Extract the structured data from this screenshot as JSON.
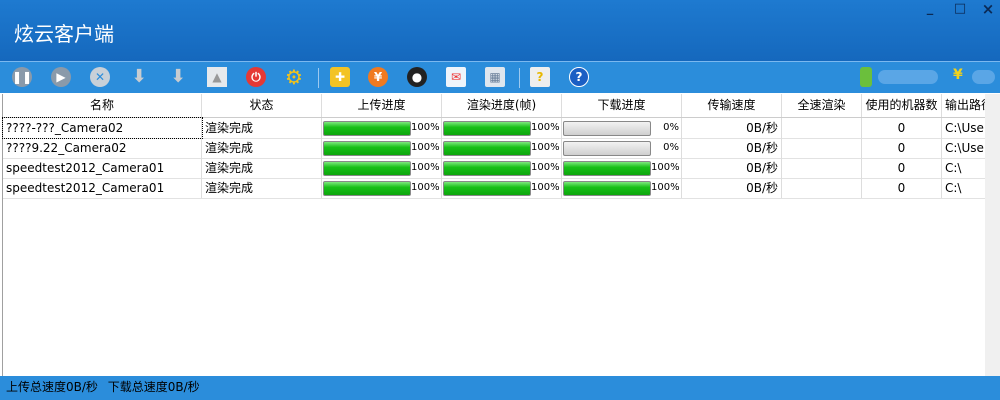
{
  "window": {
    "title": "炫云客户端",
    "minimize": "_",
    "maximize": "□",
    "close": "×"
  },
  "toolbar": {
    "icons": [
      "pause-icon",
      "play-icon",
      "delete-icon",
      "download-pause-icon",
      "download-icon",
      "image-icon",
      "power-icon",
      "gear-icon",
      "plugin-icon",
      "yuan-icon",
      "qq-icon",
      "mail-icon",
      "calculator-icon",
      "help-doc-icon",
      "help-icon"
    ],
    "user_icon": "user-icon",
    "balance_symbol": "¥"
  },
  "table": {
    "columns": [
      "名称",
      "状态",
      "上传进度",
      "渲染进度(帧)",
      "下载进度",
      "传输速度",
      "全速渲染",
      "使用的机器数",
      "输出路径"
    ],
    "rows": [
      {
        "name": "????-???_Camera02",
        "status": "渲染完成",
        "upload": 100,
        "upload_label": "100%",
        "render": 100,
        "render_label": "100%",
        "download": 0,
        "download_label": "0%",
        "speed": "0B/秒",
        "fullspeed": "",
        "machines": "0",
        "path": "C:\\Use···"
      },
      {
        "name": "????9.22_Camera02",
        "status": "渲染完成",
        "upload": 100,
        "upload_label": "100%",
        "render": 100,
        "render_label": "100%",
        "download": 0,
        "download_label": "0%",
        "speed": "0B/秒",
        "fullspeed": "",
        "machines": "0",
        "path": "C:\\Use···"
      },
      {
        "name": "speedtest2012_Camera01",
        "status": "渲染完成",
        "upload": 100,
        "upload_label": "100%",
        "render": 100,
        "render_label": "100%",
        "download": 100,
        "download_label": "100%",
        "speed": "0B/秒",
        "fullspeed": "",
        "machines": "0",
        "path": "C:\\"
      },
      {
        "name": "speedtest2012_Camera01",
        "status": "渲染完成",
        "upload": 100,
        "upload_label": "100%",
        "render": 100,
        "render_label": "100%",
        "download": 100,
        "download_label": "100%",
        "speed": "0B/秒",
        "fullspeed": "",
        "machines": "0",
        "path": "C:\\"
      }
    ]
  },
  "status": {
    "upload": "上传总速度0B/秒",
    "download": "下载总速度0B/秒"
  }
}
